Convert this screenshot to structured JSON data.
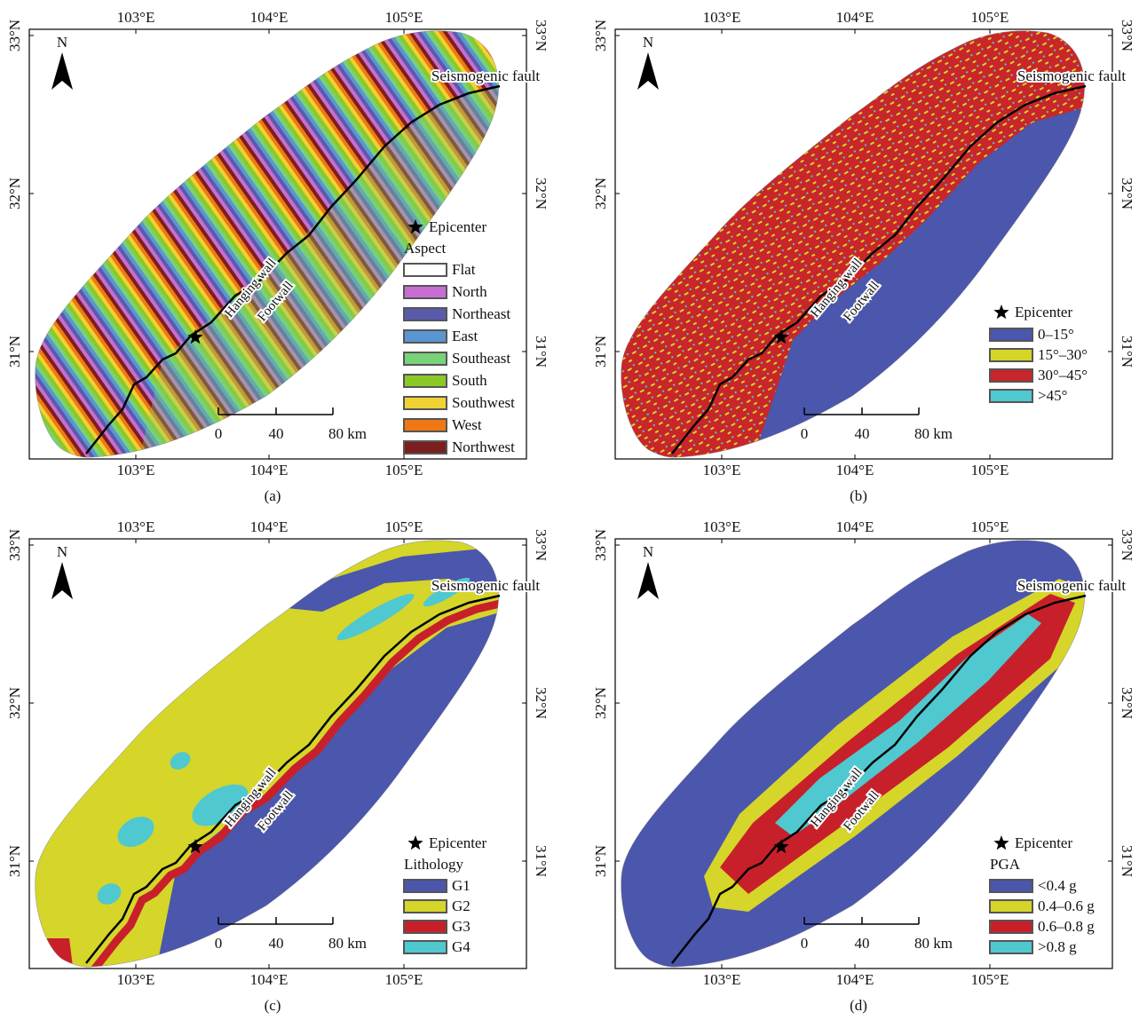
{
  "lon_labels": [
    "103°E",
    "104°E",
    "105°E"
  ],
  "lat_labels": [
    "33°N",
    "32°N",
    "31°N"
  ],
  "north": "N",
  "fault_label": "Seismogenic fault",
  "hanging_wall": "Hanging wall",
  "footwall": "Footwall",
  "epicenter": "Epicenter",
  "scale_labels": [
    "0",
    "40",
    "80 km"
  ],
  "panels": [
    {
      "label": "(a)",
      "legend_title": "Aspect",
      "legend": [
        {
          "name": "Flat",
          "color": "#ffffff"
        },
        {
          "name": "North",
          "color": "#c86ed2"
        },
        {
          "name": "Northeast",
          "color": "#5a5aaa"
        },
        {
          "name": "East",
          "color": "#5a96d2"
        },
        {
          "name": "Southeast",
          "color": "#78d278"
        },
        {
          "name": "South",
          "color": "#8cc828"
        },
        {
          "name": "Southwest",
          "color": "#f0d232"
        },
        {
          "name": "West",
          "color": "#f07814"
        },
        {
          "name": "Northwest",
          "color": "#7a1e1e"
        }
      ]
    },
    {
      "label": "(b)",
      "legend": [
        {
          "name": "0–15°",
          "color": "#4b56ad"
        },
        {
          "name": "15°–30°",
          "color": "#d5d52a"
        },
        {
          "name": "30°–45°",
          "color": "#c8262a"
        },
        {
          "name": ">45°",
          "color": "#4fc8d0"
        }
      ]
    },
    {
      "label": "(c)",
      "legend_title": "Lithology",
      "legend": [
        {
          "name": "G1",
          "color": "#4b56ad"
        },
        {
          "name": "G2",
          "color": "#d5d52a"
        },
        {
          "name": "G3",
          "color": "#c8202a"
        },
        {
          "name": "G4",
          "color": "#4fc8d0"
        }
      ]
    },
    {
      "label": "(d)",
      "legend_title": "PGA",
      "legend": [
        {
          "name": "<0.4 g",
          "color": "#4b56ad"
        },
        {
          "name": "0.4–0.6 g",
          "color": "#d5d52a"
        },
        {
          "name": "0.6–0.8 g",
          "color": "#c8202a"
        },
        {
          "name": ">0.8 g",
          "color": "#4fc8d0"
        }
      ]
    }
  ]
}
